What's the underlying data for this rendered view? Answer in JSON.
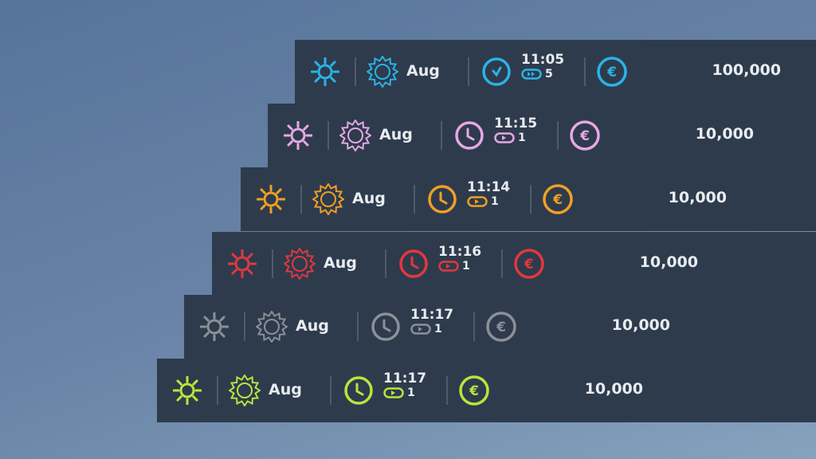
{
  "rows": [
    {
      "color": "#2ab4e6",
      "month": "Aug",
      "time": "11:05",
      "speed": "5",
      "speed_icon": "fast-forward-icon",
      "money": "100,000",
      "clock_hand": "check"
    },
    {
      "color": "#e6a8e4",
      "month": "Aug",
      "time": "11:15",
      "speed": "1",
      "speed_icon": "play-icon",
      "money": "10,000"
    },
    {
      "color": "#f0a024",
      "month": "Aug",
      "time": "11:14",
      "speed": "1",
      "speed_icon": "play-icon",
      "money": "10,000"
    },
    {
      "color": "#e2383e",
      "month": "Aug",
      "time": "11:16",
      "speed": "1",
      "speed_icon": "play-icon",
      "money": "10,000"
    },
    {
      "color": "#8b9098",
      "month": "Aug",
      "time": "11:17",
      "speed": "1",
      "speed_icon": "play-icon",
      "money": "10,000"
    },
    {
      "color": "#b6e63c",
      "month": "Aug",
      "time": "11:17",
      "speed": "1",
      "speed_icon": "play-icon",
      "money": "10,000"
    }
  ]
}
